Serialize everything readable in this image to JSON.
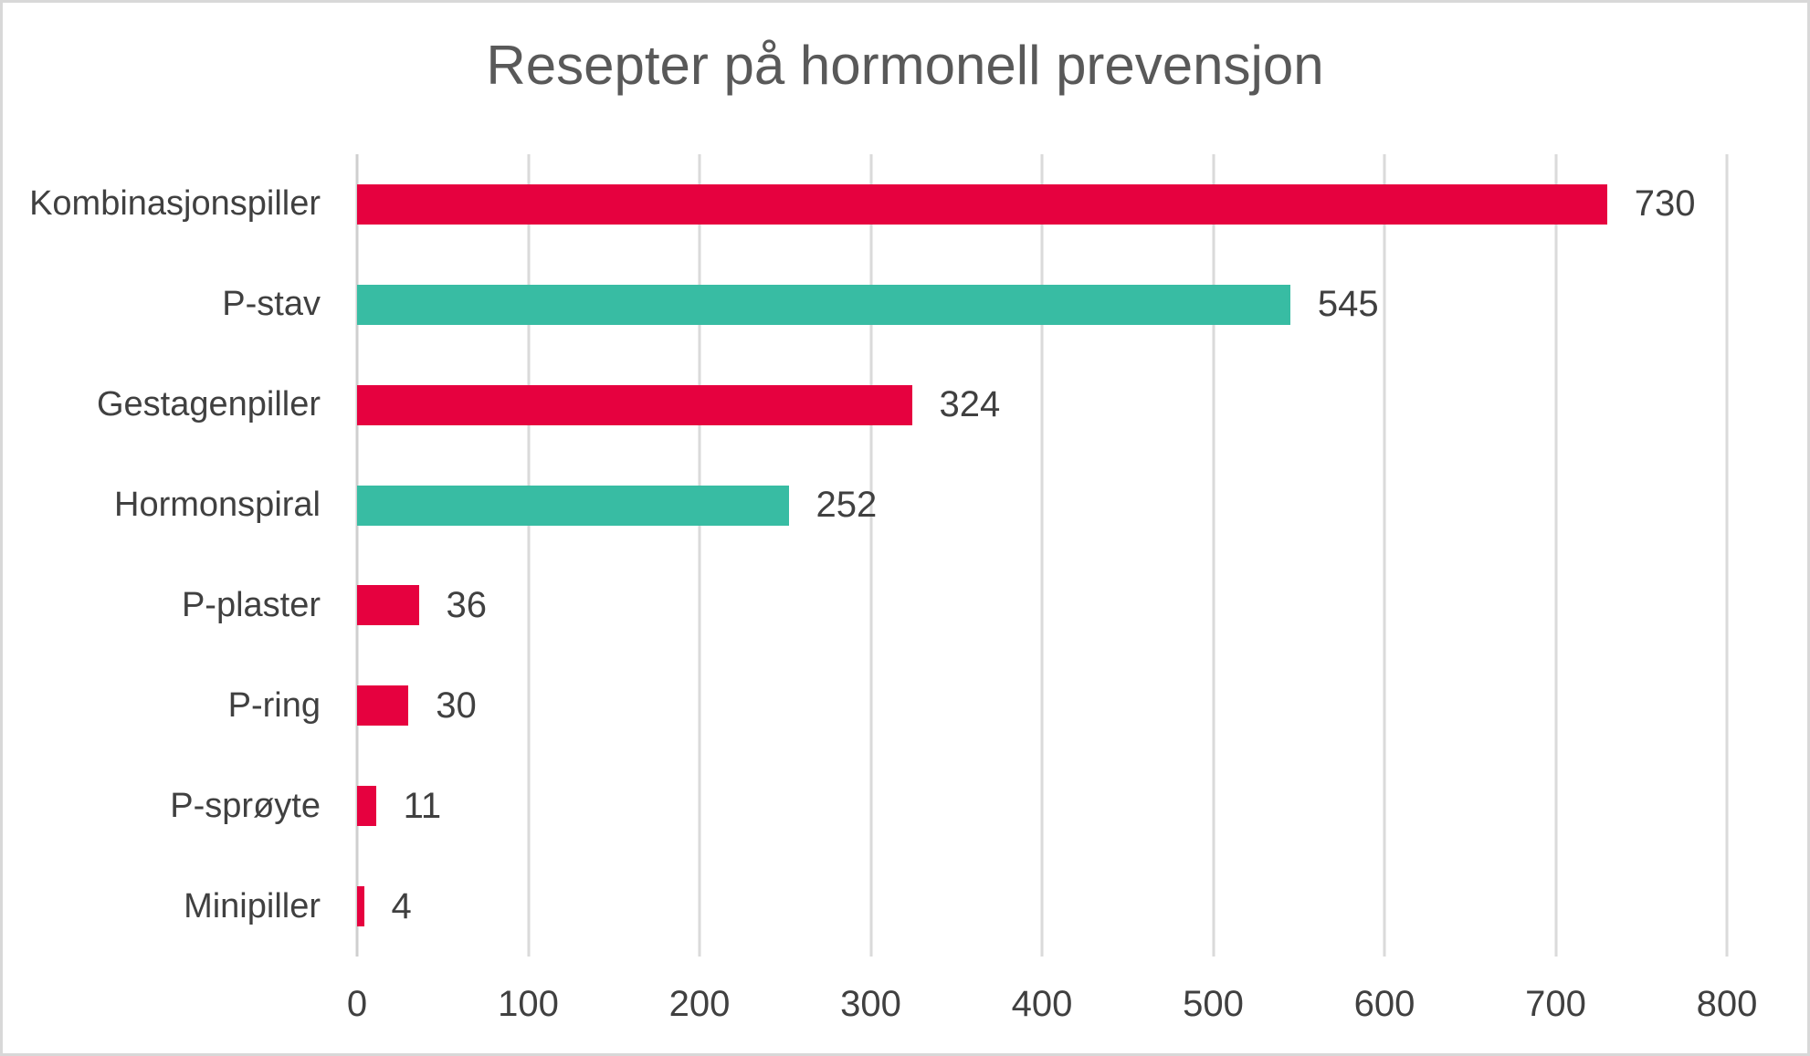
{
  "frame": {
    "background": "#ffffff",
    "border_color": "#d8d8d8"
  },
  "chart_data": {
    "type": "bar",
    "orientation": "horizontal",
    "title": "Resepter på hormonell prevensjon",
    "categories": [
      "Kombinasjonspiller",
      "P-stav",
      "Gestagenpiller",
      "Hormonspiral",
      "P-plaster",
      "P-ring",
      "P-sprøyte",
      "Minipiller"
    ],
    "values": [
      730,
      545,
      324,
      252,
      36,
      30,
      11,
      4
    ],
    "data_labels": [
      "730",
      "545",
      "324",
      "252",
      "36",
      "30",
      "11",
      "4"
    ],
    "bar_colors": [
      "#e6013f",
      "#38bca3",
      "#e6013f",
      "#38bca3",
      "#e6013f",
      "#e6013f",
      "#e6013f",
      "#e6013f"
    ],
    "xlabel": "",
    "ylabel": "",
    "xlim": [
      0,
      800
    ],
    "x_ticks": [
      0,
      100,
      200,
      300,
      400,
      500,
      600,
      700,
      800
    ],
    "x_tick_labels": [
      "0",
      "100",
      "200",
      "300",
      "400",
      "500",
      "600",
      "700",
      "800"
    ],
    "grid": true,
    "gridline_orientation": "vertical",
    "legend": "none",
    "value_label_position": "outside-end",
    "colors": {
      "red_bar": "#e6013f",
      "teal_bar": "#38bca3",
      "title_text": "#595959",
      "label_text": "#404040",
      "gridline": "#dadada",
      "axis_line": "#cfcfcf"
    }
  }
}
